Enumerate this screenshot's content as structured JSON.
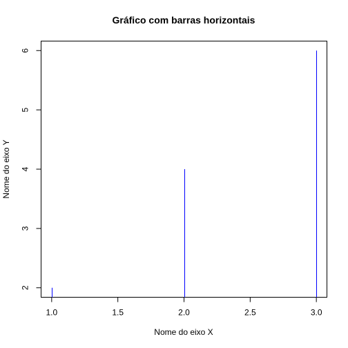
{
  "chart_data": {
    "type": "bar",
    "title": "Gráfico com barras horizontais",
    "xlabel": "Nome do eixo X",
    "ylabel": "Nome do eixo Y",
    "x": [
      1,
      2,
      3
    ],
    "values": [
      2,
      4,
      6
    ],
    "xlim": [
      0.92,
      3.08
    ],
    "ylim": [
      1.84,
      6.16
    ],
    "xticks": [
      1.0,
      1.5,
      2.0,
      2.5,
      3.0
    ],
    "xtick_labels": [
      "1.0",
      "1.5",
      "2.0",
      "2.5",
      "3.0"
    ],
    "yticks": [
      2,
      3,
      4,
      5,
      6
    ],
    "ytick_labels": [
      "2",
      "3",
      "4",
      "5",
      "6"
    ],
    "bar_color": "#0000ff",
    "grid": false,
    "legend": "none"
  }
}
